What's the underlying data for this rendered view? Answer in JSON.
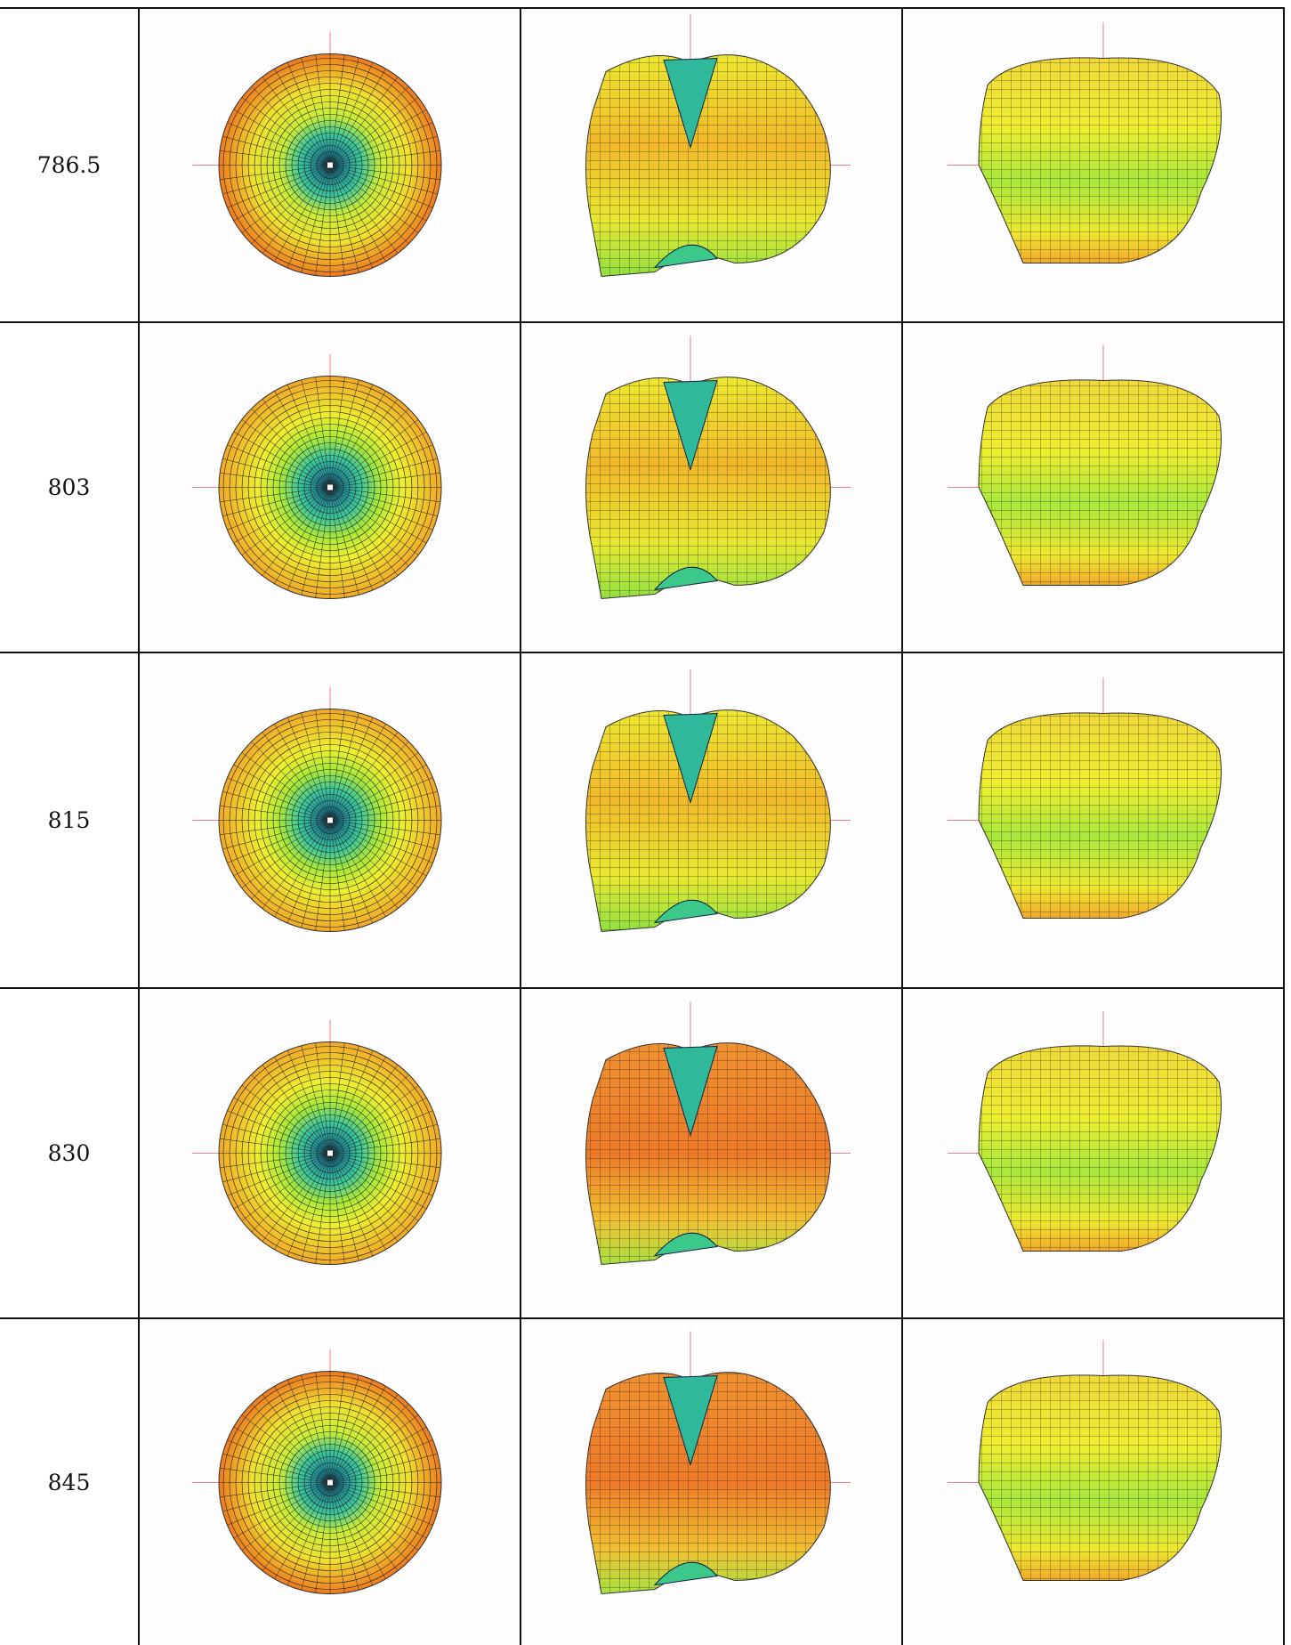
{
  "table": {
    "rows": [
      [
        "786.5"
      ],
      [
        "803"
      ],
      [
        "815"
      ],
      [
        "830"
      ],
      [
        "845"
      ]
    ]
  }
}
